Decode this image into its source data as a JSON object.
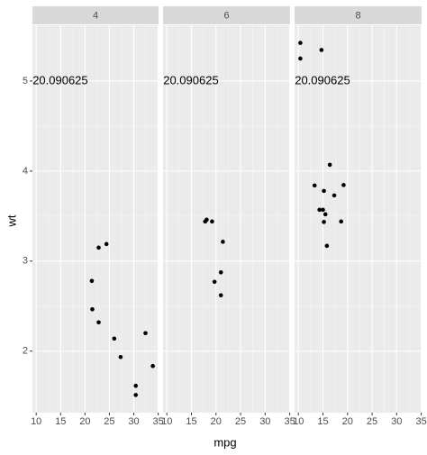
{
  "chart_data": {
    "type": "scatter",
    "x_label": "mpg",
    "y_label": "wt",
    "color": "#000000",
    "xlim": [
      9.225,
      35.075
    ],
    "ylim": [
      1.317,
      5.62
    ],
    "xticks": [
      10,
      15,
      20,
      25,
      30,
      35
    ],
    "yticks": [
      2,
      3,
      4,
      5
    ],
    "grid": true,
    "annotation": {
      "text": "20.090625",
      "x": 10,
      "y": 5
    },
    "facets": [
      {
        "label": "4",
        "x": [
          22.8,
          24.4,
          22.8,
          32.4,
          30.4,
          33.9,
          21.5,
          27.3,
          26,
          30.4,
          21.4
        ],
        "y": [
          2.32,
          3.19,
          3.15,
          2.2,
          1.615,
          1.835,
          2.465,
          1.935,
          2.14,
          1.513,
          2.78
        ]
      },
      {
        "label": "6",
        "x": [
          21,
          21,
          21.4,
          18.1,
          19.2,
          17.8,
          19.7
        ],
        "y": [
          2.62,
          2.875,
          3.215,
          3.46,
          3.44,
          3.44,
          2.77
        ]
      },
      {
        "label": "8",
        "x": [
          18.7,
          14.3,
          16.4,
          17.3,
          15.2,
          10.4,
          10.4,
          14.7,
          15.5,
          15.2,
          13.3,
          19.2,
          15.8,
          15
        ],
        "y": [
          3.44,
          3.57,
          4.07,
          3.73,
          3.78,
          5.25,
          5.424,
          5.345,
          3.52,
          3.435,
          3.84,
          3.845,
          3.17,
          3.57
        ]
      }
    ]
  }
}
